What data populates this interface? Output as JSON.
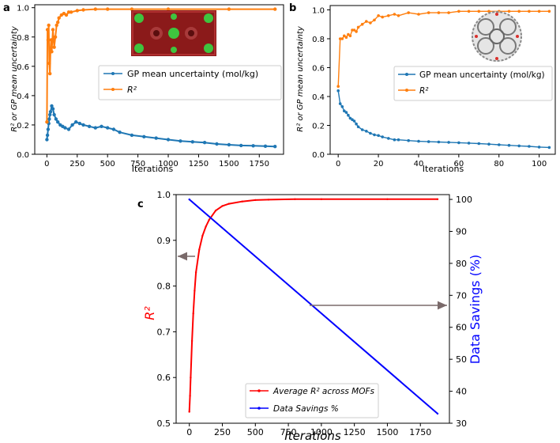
{
  "panel_labels": [
    "a",
    "b",
    "c"
  ],
  "chart_data": [
    {
      "type": "line",
      "panel": "a",
      "title": "",
      "xlabel": "Iterations",
      "ylabel": "R² or GP mean uncertainty",
      "xlim": [
        -100,
        1950
      ],
      "ylim": [
        0,
        1.02
      ],
      "xticks": [
        0,
        250,
        500,
        750,
        1000,
        1250,
        1500,
        1750
      ],
      "yticks": [
        0.0,
        0.2,
        0.4,
        0.6,
        0.8,
        1.0
      ],
      "legend": {
        "position": "center-right",
        "entries": [
          "GP mean uncertainty (mol/kg)",
          "R²"
        ]
      },
      "inset_image": "MOF crystal structure (red/green framework)",
      "series": [
        {
          "name": "GP mean uncertainty (mol/kg)",
          "color": "#1f77b4",
          "x": [
            0,
            5,
            10,
            15,
            20,
            25,
            30,
            40,
            50,
            60,
            75,
            90,
            110,
            130,
            150,
            180,
            210,
            240,
            270,
            300,
            350,
            400,
            450,
            500,
            550,
            600,
            700,
            800,
            900,
            1000,
            1100,
            1200,
            1300,
            1400,
            1500,
            1600,
            1700,
            1800,
            1880
          ],
          "values": [
            0.1,
            0.13,
            0.17,
            0.21,
            0.24,
            0.27,
            0.29,
            0.33,
            0.31,
            0.27,
            0.24,
            0.22,
            0.2,
            0.19,
            0.18,
            0.17,
            0.2,
            0.22,
            0.21,
            0.2,
            0.19,
            0.18,
            0.19,
            0.18,
            0.17,
            0.15,
            0.13,
            0.12,
            0.11,
            0.1,
            0.09,
            0.085,
            0.08,
            0.07,
            0.065,
            0.06,
            0.058,
            0.055,
            0.053
          ]
        },
        {
          "name": "R²",
          "color": "#ff7f0e",
          "x": [
            0,
            5,
            10,
            15,
            20,
            25,
            30,
            35,
            40,
            50,
            60,
            70,
            80,
            90,
            100,
            120,
            140,
            160,
            180,
            200,
            250,
            300,
            400,
            500,
            700,
            1000,
            1500,
            1880
          ],
          "values": [
            0.22,
            0.85,
            0.78,
            0.88,
            0.62,
            0.55,
            0.72,
            0.78,
            0.7,
            0.85,
            0.73,
            0.8,
            0.88,
            0.9,
            0.93,
            0.95,
            0.96,
            0.95,
            0.97,
            0.97,
            0.98,
            0.985,
            0.99,
            0.99,
            0.99,
            0.99,
            0.99,
            0.99
          ]
        }
      ]
    },
    {
      "type": "line",
      "panel": "b",
      "title": "",
      "xlabel": "Iterations",
      "ylabel": "R² or GP mean uncertainty",
      "xlim": [
        -4,
        108
      ],
      "ylim": [
        0,
        1.03
      ],
      "xticks": [
        0,
        20,
        40,
        60,
        80,
        100
      ],
      "yticks": [
        0.0,
        0.2,
        0.4,
        0.6,
        0.8,
        1.0
      ],
      "legend": {
        "position": "center-right",
        "entries": [
          "GP mean uncertainty (mol/kg)",
          "R²"
        ]
      },
      "inset_image": "MOF cage structure (grey framework)",
      "series": [
        {
          "name": "GP mean uncertainty (mol/kg)",
          "color": "#1f77b4",
          "x": [
            0,
            1,
            2,
            3,
            4,
            5,
            6,
            7,
            8,
            9,
            10,
            12,
            14,
            16,
            18,
            20,
            22,
            25,
            28,
            30,
            35,
            40,
            45,
            50,
            55,
            60,
            65,
            70,
            75,
            80,
            85,
            90,
            95,
            100,
            105
          ],
          "values": [
            0.44,
            0.35,
            0.33,
            0.3,
            0.29,
            0.27,
            0.25,
            0.24,
            0.23,
            0.21,
            0.19,
            0.17,
            0.16,
            0.145,
            0.135,
            0.13,
            0.12,
            0.11,
            0.1,
            0.1,
            0.095,
            0.09,
            0.087,
            0.085,
            0.083,
            0.08,
            0.077,
            0.074,
            0.07,
            0.066,
            0.062,
            0.058,
            0.055,
            0.05,
            0.047
          ]
        },
        {
          "name": "R²",
          "color": "#ff7f0e",
          "x": [
            0,
            1,
            2,
            3,
            4,
            5,
            6,
            7,
            8,
            9,
            10,
            12,
            14,
            16,
            18,
            20,
            22,
            25,
            28,
            30,
            35,
            40,
            45,
            50,
            55,
            60,
            65,
            70,
            75,
            80,
            85,
            90,
            95,
            100,
            105
          ],
          "values": [
            0.47,
            0.8,
            0.8,
            0.82,
            0.81,
            0.83,
            0.82,
            0.86,
            0.86,
            0.85,
            0.88,
            0.9,
            0.92,
            0.91,
            0.93,
            0.96,
            0.95,
            0.96,
            0.97,
            0.96,
            0.98,
            0.97,
            0.98,
            0.98,
            0.98,
            0.99,
            0.99,
            0.99,
            0.99,
            0.99,
            0.99,
            0.99,
            0.99,
            0.99,
            0.99
          ]
        }
      ]
    },
    {
      "type": "line",
      "panel": "c",
      "title": "",
      "xlabel": "Iterations",
      "ylabel": "R²",
      "y2label": "Data Savings (%)",
      "xlim": [
        -100,
        1970
      ],
      "ylim": [
        0.5,
        1.0
      ],
      "y2lim": [
        30,
        101.5
      ],
      "xticks": [
        0,
        250,
        500,
        750,
        1000,
        1250,
        1500,
        1750
      ],
      "yticks": [
        0.5,
        0.6,
        0.7,
        0.8,
        0.9,
        1.0
      ],
      "y2ticks": [
        30,
        40,
        50,
        60,
        70,
        80,
        90,
        100
      ],
      "legend": {
        "position": "bottom-center",
        "entries": [
          "Average R² across MOFs",
          "Data Savings %"
        ]
      },
      "arrows": [
        "points to left axis",
        "points to right axis"
      ],
      "series": [
        {
          "name": "Average R² across MOFs",
          "color": "#ff0000",
          "axis": "left",
          "x": [
            0,
            5,
            10,
            20,
            30,
            40,
            50,
            75,
            100,
            125,
            150,
            200,
            250,
            300,
            400,
            500,
            600,
            800,
            1000,
            1500,
            1880
          ],
          "values": [
            0.525,
            0.56,
            0.6,
            0.68,
            0.74,
            0.79,
            0.83,
            0.88,
            0.91,
            0.93,
            0.945,
            0.965,
            0.975,
            0.98,
            0.985,
            0.988,
            0.989,
            0.99,
            0.99,
            0.99,
            0.99
          ]
        },
        {
          "name": "Data Savings %",
          "color": "#0000ff",
          "axis": "right",
          "x": [
            0,
            1880
          ],
          "values": [
            100,
            33
          ]
        }
      ]
    }
  ]
}
